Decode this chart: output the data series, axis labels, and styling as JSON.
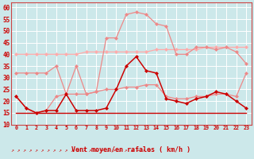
{
  "x": [
    0,
    1,
    2,
    3,
    4,
    5,
    6,
    7,
    8,
    9,
    10,
    11,
    12,
    13,
    14,
    15,
    16,
    17,
    18,
    19,
    20,
    21,
    22,
    23
  ],
  "line_rafales": [
    22,
    17,
    15,
    16,
    22,
    23,
    35,
    23,
    24,
    47,
    47,
    57,
    58,
    57,
    53,
    52,
    40,
    40,
    43,
    43,
    42,
    43,
    41,
    36
  ],
  "line_moyen": [
    22,
    17,
    15,
    16,
    16,
    23,
    16,
    16,
    16,
    17,
    25,
    35,
    39,
    33,
    32,
    21,
    20,
    19,
    21,
    22,
    24,
    23,
    20,
    17
  ],
  "line_ref1": [
    32,
    32,
    32,
    32,
    35,
    23,
    23,
    23,
    24,
    25,
    25,
    26,
    26,
    27,
    27,
    22,
    21,
    21,
    22,
    22,
    23,
    23,
    22,
    32
  ],
  "line_ref2": [
    40,
    40,
    40,
    40,
    40,
    40,
    40,
    41,
    41,
    41,
    41,
    41,
    41,
    41,
    42,
    42,
    42,
    42,
    42,
    43,
    43,
    43,
    43,
    43
  ],
  "line_flat15": [
    15,
    15,
    15,
    15,
    15,
    15,
    15,
    15,
    15,
    15,
    15,
    15,
    15,
    15,
    15,
    15,
    15,
    15,
    15,
    15,
    15,
    15,
    15,
    15
  ],
  "bg_color": "#cce8ea",
  "grid_color": "#aacccc",
  "xlabel": "Vent moyen/en rafales ( km/h )",
  "ylim": [
    10,
    62
  ],
  "yticks": [
    10,
    15,
    20,
    25,
    30,
    35,
    40,
    45,
    50,
    55,
    60
  ],
  "color_dark_red": "#cc0000",
  "color_med_red": "#dd4444",
  "color_light_red": "#ee8888",
  "color_pale_red": "#ffaaaa",
  "color_flat": "#cc0000",
  "marker_size": 2.5,
  "line_width": 0.9
}
